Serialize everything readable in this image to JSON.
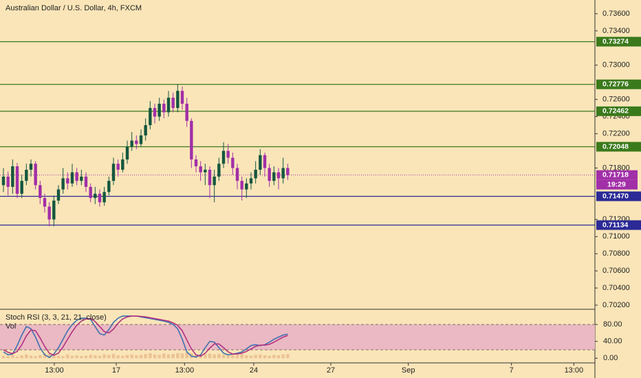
{
  "chart_data": [
    {
      "type": "candlestick",
      "title": "Australian Dollar / U.S. Dollar, 4h, FXCM",
      "x": [
        0,
        1,
        2,
        3,
        4,
        5,
        6,
        7,
        8,
        9,
        10,
        11,
        12,
        13,
        14,
        15,
        16,
        17,
        18,
        19,
        20,
        21,
        22,
        23,
        24,
        25,
        26,
        27,
        28,
        29,
        30,
        31,
        32,
        33,
        34,
        35,
        36,
        37,
        38,
        39,
        40,
        41,
        42,
        43,
        44,
        45,
        46,
        47,
        48,
        49,
        50,
        51,
        52,
        53,
        54,
        55,
        56,
        57,
        58,
        59,
        60,
        61,
        62
      ],
      "open": [
        0.716,
        0.717,
        0.7158,
        0.7182,
        0.715,
        0.7165,
        0.7178,
        0.7185,
        0.716,
        0.7145,
        0.7135,
        0.712,
        0.7142,
        0.7155,
        0.7168,
        0.7162,
        0.7175,
        0.7165,
        0.717,
        0.7158,
        0.7145,
        0.715,
        0.714,
        0.7152,
        0.7165,
        0.7185,
        0.7178,
        0.719,
        0.7205,
        0.7212,
        0.7208,
        0.7218,
        0.723,
        0.725,
        0.724,
        0.7255,
        0.7245,
        0.7262,
        0.725,
        0.727,
        0.7255,
        0.7235,
        0.719,
        0.7182,
        0.7175,
        0.7178,
        0.716,
        0.717,
        0.7185,
        0.72,
        0.7192,
        0.718,
        0.7165,
        0.7155,
        0.7162,
        0.7168,
        0.7178,
        0.7195,
        0.718,
        0.7165,
        0.7175,
        0.7168,
        0.718
      ],
      "high": [
        0.718,
        0.7176,
        0.719,
        0.7186,
        0.7172,
        0.7185,
        0.719,
        0.7188,
        0.7165,
        0.715,
        0.714,
        0.7148,
        0.716,
        0.718,
        0.7175,
        0.7185,
        0.718,
        0.7178,
        0.7175,
        0.7162,
        0.7158,
        0.7155,
        0.7158,
        0.717,
        0.7192,
        0.719,
        0.7198,
        0.7212,
        0.7222,
        0.7218,
        0.7225,
        0.7238,
        0.7258,
        0.7255,
        0.7262,
        0.726,
        0.727,
        0.7268,
        0.7278,
        0.7275,
        0.7262,
        0.7238,
        0.7195,
        0.7188,
        0.7185,
        0.7182,
        0.7178,
        0.7192,
        0.721,
        0.7208,
        0.7198,
        0.7185,
        0.717,
        0.7168,
        0.7175,
        0.7188,
        0.7202,
        0.7198,
        0.7185,
        0.7182,
        0.718,
        0.7192,
        0.7185
      ],
      "low": [
        0.7152,
        0.7148,
        0.715,
        0.7145,
        0.7145,
        0.716,
        0.717,
        0.7155,
        0.7138,
        0.7128,
        0.7112,
        0.7112,
        0.7138,
        0.715,
        0.7155,
        0.7158,
        0.716,
        0.716,
        0.7152,
        0.714,
        0.7138,
        0.7135,
        0.7136,
        0.7148,
        0.716,
        0.717,
        0.7175,
        0.7185,
        0.72,
        0.7202,
        0.7205,
        0.7212,
        0.7225,
        0.7232,
        0.7235,
        0.7238,
        0.724,
        0.7245,
        0.7245,
        0.7248,
        0.7228,
        0.718,
        0.7175,
        0.7165,
        0.716,
        0.7145,
        0.714,
        0.7165,
        0.718,
        0.7185,
        0.7172,
        0.7155,
        0.7142,
        0.7145,
        0.7155,
        0.7162,
        0.7172,
        0.717,
        0.7158,
        0.716,
        0.7155,
        0.7162,
        0.7166
      ],
      "close": [
        0.717,
        0.7158,
        0.7182,
        0.715,
        0.7165,
        0.7178,
        0.7185,
        0.716,
        0.7145,
        0.7135,
        0.712,
        0.7142,
        0.7155,
        0.7168,
        0.7162,
        0.7175,
        0.7165,
        0.717,
        0.7158,
        0.7145,
        0.715,
        0.714,
        0.7152,
        0.7165,
        0.7185,
        0.7178,
        0.719,
        0.7205,
        0.7212,
        0.7208,
        0.7218,
        0.723,
        0.725,
        0.724,
        0.7255,
        0.7245,
        0.7262,
        0.725,
        0.727,
        0.7255,
        0.7235,
        0.719,
        0.7182,
        0.7175,
        0.7178,
        0.716,
        0.717,
        0.7185,
        0.72,
        0.7192,
        0.718,
        0.7165,
        0.7155,
        0.7162,
        0.7168,
        0.7178,
        0.7195,
        0.718,
        0.7165,
        0.7175,
        0.7168,
        0.718,
        0.71718
      ],
      "up_color": "#14573f",
      "down_color": "#a12fa8",
      "xlim": [
        -0.75,
        129
      ],
      "ylim": [
        0.70152,
        0.7376
      ],
      "yticks": [
        {
          "value": 0.736,
          "label": "0.73600"
        },
        {
          "value": 0.734,
          "label": "0.73400"
        },
        {
          "value": 0.73,
          "label": "0.73000"
        },
        {
          "value": 0.726,
          "label": "0.72600"
        },
        {
          "value": 0.724,
          "label": "0.72400"
        },
        {
          "value": 0.722,
          "label": "0.72200"
        },
        {
          "value": 0.718,
          "label": "0.71800"
        },
        {
          "value": 0.712,
          "label": "0.71200"
        },
        {
          "value": 0.71,
          "label": "0.71000"
        },
        {
          "value": 0.708,
          "label": "0.70800"
        },
        {
          "value": 0.706,
          "label": "0.70600"
        },
        {
          "value": 0.704,
          "label": "0.70400"
        },
        {
          "value": 0.702,
          "label": "0.70200"
        }
      ],
      "levels": [
        {
          "value": 0.73274,
          "label": "0.73274",
          "color": "#3b7a1c"
        },
        {
          "value": 0.72776,
          "label": "0.72776",
          "color": "#3b7a1c"
        },
        {
          "value": 0.72462,
          "label": "0.72462",
          "color": "#3b7a1c"
        },
        {
          "value": 0.72048,
          "label": "0.72048",
          "color": "#3b7a1c"
        },
        {
          "value": 0.7147,
          "label": "0.71470",
          "color": "#2b2a96"
        },
        {
          "value": 0.71134,
          "label": "0.71134",
          "color": "#2b2a96"
        }
      ],
      "last_price": {
        "value": 0.71718,
        "label": "0.71718",
        "color": "#a12fa8"
      },
      "countdown": "19:29"
    },
    {
      "type": "line",
      "title": "Stoch RSI (3, 3, 21, 21, close)",
      "x": [
        0,
        1,
        2,
        3,
        4,
        5,
        6,
        7,
        8,
        9,
        10,
        11,
        12,
        13,
        14,
        15,
        16,
        17,
        18,
        19,
        20,
        21,
        22,
        23,
        24,
        25,
        26,
        27,
        28,
        29,
        30,
        31,
        32,
        33,
        34,
        35,
        36,
        37,
        38,
        39,
        40,
        41,
        42,
        43,
        44,
        45,
        46,
        47,
        48,
        49,
        50,
        51,
        52,
        53,
        54,
        55,
        56,
        57,
        58,
        59,
        60,
        61,
        62
      ],
      "series": [
        {
          "color": "#3f6fb0",
          "values": [
            15,
            8,
            10,
            30,
            55,
            75,
            70,
            50,
            25,
            8,
            2,
            10,
            25,
            45,
            65,
            80,
            90,
            95,
            95,
            92,
            75,
            58,
            55,
            68,
            85,
            95,
            100,
            100,
            100,
            100,
            98,
            96,
            94,
            92,
            90,
            88,
            85,
            80,
            70,
            45,
            15,
            5,
            3,
            8,
            25,
            40,
            38,
            25,
            12,
            8,
            10,
            12,
            15,
            22,
            30,
            32,
            30,
            32,
            38,
            45,
            50,
            55,
            57
          ]
        },
        {
          "color": "#b3307f",
          "values": [
            20,
            14,
            11,
            16,
            32,
            53,
            67,
            65,
            48,
            28,
            12,
            7,
            12,
            27,
            45,
            63,
            78,
            88,
            93,
            94,
            87,
            75,
            63,
            60,
            69,
            83,
            93,
            98,
            100,
            100,
            99,
            98,
            96,
            94,
            92,
            90,
            88,
            84,
            78,
            65,
            43,
            22,
            8,
            5,
            12,
            24,
            34,
            34,
            25,
            15,
            10,
            10,
            12,
            16,
            22,
            28,
            31,
            31,
            33,
            38,
            44,
            50,
            54
          ]
        }
      ],
      "volume": {
        "name": "Vol",
        "color": "#ebc294",
        "values": [
          6,
          5,
          8,
          4,
          7,
          9,
          6,
          5,
          8,
          12,
          10,
          7,
          6,
          5,
          9,
          6,
          7,
          5,
          6,
          8,
          7,
          6,
          9,
          8,
          10,
          7,
          6,
          8,
          9,
          7,
          8,
          10,
          12,
          9,
          8,
          11,
          9,
          10,
          12,
          11,
          14,
          12,
          9,
          8,
          10,
          11,
          9,
          10,
          8,
          7,
          9,
          8,
          10,
          7,
          6,
          8,
          9,
          7,
          6,
          8,
          7,
          9,
          10
        ]
      },
      "band": [
        20,
        80
      ],
      "band_color": "#eab9c3",
      "xlim": [
        -0.75,
        129
      ],
      "ylim": [
        -11,
        116
      ],
      "yticks": [
        {
          "value": 80,
          "label": "80.00"
        },
        {
          "value": 40,
          "label": "40.00"
        },
        {
          "value": 0,
          "label": "0.00"
        }
      ],
      "xticks": [
        {
          "value": 11.1,
          "label": "13:00"
        },
        {
          "value": 24.6,
          "label": "17"
        },
        {
          "value": 39.5,
          "label": "13:00"
        },
        {
          "value": 54.6,
          "label": "24"
        },
        {
          "value": 71.4,
          "label": "27"
        },
        {
          "value": 88.3,
          "label": "Sep"
        },
        {
          "value": 110.8,
          "label": "7"
        },
        {
          "value": 124.4,
          "label": "13:00"
        }
      ]
    }
  ]
}
